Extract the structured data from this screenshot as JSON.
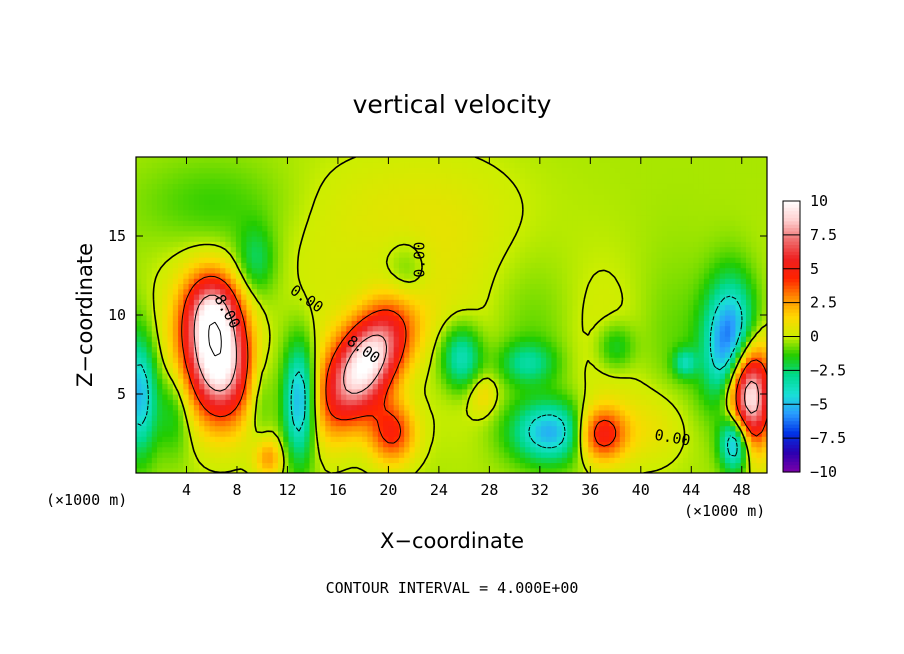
{
  "chart_data": {
    "type": "heatmap",
    "title": "vertical velocity",
    "xlabel": "X−coordinate",
    "ylabel": "Z−coordinate",
    "x_unit_left": "(×1000 m)",
    "x_unit_right": "(×1000 m)",
    "xlim": [
      0,
      50
    ],
    "ylim": [
      0,
      20
    ],
    "xticks": [
      4,
      8,
      12,
      16,
      20,
      24,
      28,
      32,
      36,
      40,
      44,
      48
    ],
    "xtick_labels": [
      "4",
      "8",
      "12",
      "16",
      "20",
      "24",
      "28",
      "32",
      "36",
      "40",
      "44",
      "48"
    ],
    "yticks": [
      5,
      10,
      15
    ],
    "ytick_labels": [
      "5",
      "10",
      "15"
    ],
    "colorbar": {
      "min": -10,
      "max": 10,
      "ticks": [
        10,
        7.5,
        5,
        2.5,
        0,
        -2.5,
        -5,
        -7.5,
        -10
      ],
      "tick_labels": [
        "10",
        "7.5",
        "5",
        "2.5",
        "0",
        "−2.5",
        "−5",
        "−7.5",
        "−10"
      ],
      "colors": [
        "#7a00a8",
        "#2a00b0",
        "#0033e6",
        "#2a9cff",
        "#19e0d6",
        "#00d98c",
        "#22cc00",
        "#ccee00",
        "#ffd700",
        "#ff8c00",
        "#ff2200",
        "#ee2020",
        "#f07070",
        "#ffd0d0",
        "#ffffff"
      ]
    },
    "contour_interval": 4.0,
    "contour_labels": [
      "8.00",
      "8.00",
      "0.00",
      "0.00",
      "0.00"
    ],
    "features": [
      {
        "x": 6.5,
        "z": 7.5,
        "sx": 1.8,
        "sz": 2.8,
        "w": 12,
        "tilt": -0.08
      },
      {
        "x": 6.0,
        "z": 10.5,
        "sx": 1.4,
        "sz": 1.6,
        "w": 4,
        "tilt": 0
      },
      {
        "x": 18.3,
        "z": 7.0,
        "sx": 2.0,
        "sz": 2.6,
        "w": 11,
        "tilt": 0.5
      },
      {
        "x": 20.3,
        "z": 2.6,
        "sx": 1.3,
        "sz": 1.4,
        "w": 5,
        "tilt": 0
      },
      {
        "x": 13.0,
        "z": 4.5,
        "sx": 0.9,
        "sz": 2.6,
        "w": -6,
        "tilt": 0
      },
      {
        "x": 0.3,
        "z": 5.0,
        "sx": 0.9,
        "sz": 2.6,
        "w": -5,
        "tilt": 0
      },
      {
        "x": 3.0,
        "z": 4.0,
        "sx": 1.0,
        "sz": 2.0,
        "w": -2,
        "tilt": 0
      },
      {
        "x": 48.5,
        "z": 5.0,
        "sx": 1.2,
        "sz": 2.3,
        "w": 12,
        "tilt": 0
      },
      {
        "x": 47.2,
        "z": 8.0,
        "sx": 1.4,
        "sz": 2.8,
        "w": -8,
        "tilt": 0
      },
      {
        "x": 47.5,
        "z": 2.0,
        "sx": 0.8,
        "sz": 1.3,
        "w": -7,
        "tilt": 0
      },
      {
        "x": 36.8,
        "z": 2.5,
        "sx": 1.4,
        "sz": 1.2,
        "w": 6,
        "tilt": 0
      },
      {
        "x": 33.0,
        "z": 2.6,
        "sx": 2.2,
        "sz": 1.3,
        "w": -5,
        "tilt": 0
      },
      {
        "x": 25.8,
        "z": 7.3,
        "sx": 1.1,
        "sz": 1.4,
        "w": -4,
        "tilt": 0
      },
      {
        "x": 31.0,
        "z": 7.0,
        "sx": 1.5,
        "sz": 0.9,
        "w": -2.5,
        "tilt": 0
      },
      {
        "x": 27.5,
        "z": 5.0,
        "sx": 0.8,
        "sz": 0.9,
        "w": 1.5,
        "tilt": 0
      },
      {
        "x": 10.5,
        "z": 1.0,
        "sx": 0.8,
        "sz": 0.9,
        "w": 3,
        "tilt": 0
      },
      {
        "x": 9.8,
        "z": 5.0,
        "sx": 0.7,
        "sz": 2.0,
        "w": -1.5,
        "tilt": 0
      },
      {
        "x": 43.5,
        "z": 7.0,
        "sx": 0.6,
        "sz": 0.6,
        "w": -3,
        "tilt": 0
      },
      {
        "x": 41.0,
        "z": 3.0,
        "sx": 2.0,
        "sz": 1.8,
        "w": 1.2,
        "tilt": 0
      },
      {
        "x": 38.0,
        "z": 8.0,
        "sx": 1.0,
        "sz": 1.0,
        "w": -2,
        "tilt": 0
      },
      {
        "x": 22.0,
        "z": 16.0,
        "sx": 6.0,
        "sz": 3.0,
        "w": 1.0,
        "tilt": 0
      },
      {
        "x": 9.5,
        "z": 13.5,
        "sx": 1.0,
        "sz": 1.5,
        "w": -2,
        "tilt": 0
      },
      {
        "x": 21.5,
        "z": 12.5,
        "sx": 1.2,
        "sz": 1.5,
        "w": -1.5,
        "tilt": 0
      },
      {
        "x": 6.0,
        "z": 17.0,
        "sx": 4.0,
        "sz": 2.0,
        "w": -1,
        "tilt": 0
      }
    ],
    "background": -0.3
  },
  "footer": {
    "contour_interval_text": "CONTOUR INTERVAL = 4.000E+00"
  }
}
